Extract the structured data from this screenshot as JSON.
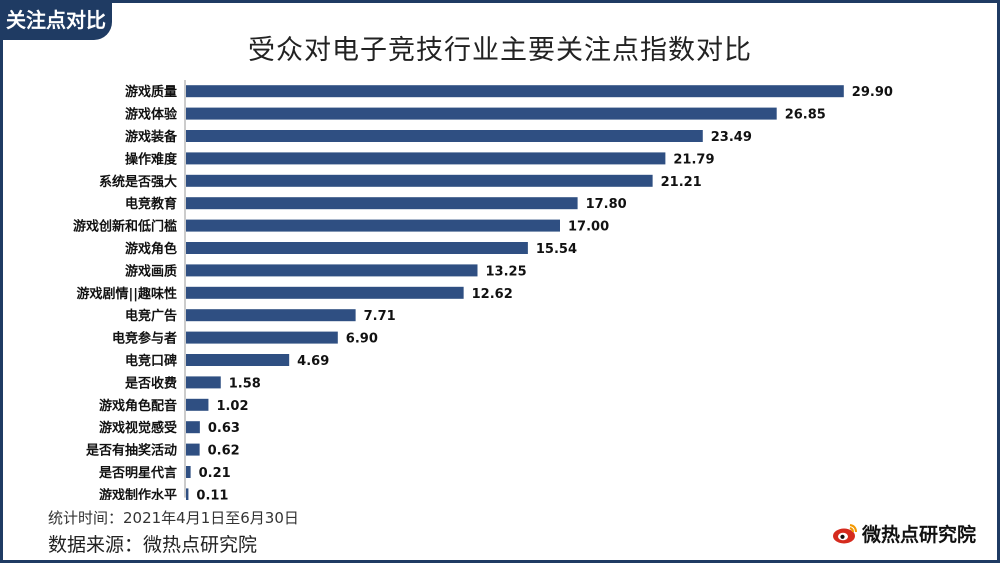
{
  "tag": "关注点对比",
  "title": "受众对电子竞技行业主要关注点指数对比",
  "footnote_period": "统计时间：2021年4月1日至6月30日",
  "footnote_source": "数据来源：微热点研究院",
  "brand": {
    "text": "微热点研究院",
    "logo_icon": "weibo-eye-logo"
  },
  "colors": {
    "bar": "#2f4f82",
    "frame": "#1f3b63",
    "text": "#111111"
  },
  "chart_data": {
    "type": "bar",
    "orientation": "horizontal",
    "title": "受众对电子竞技行业主要关注点指数对比",
    "categories": [
      "游戏质量",
      "游戏体验",
      "游戏装备",
      "操作难度",
      "系统是否强大",
      "电竞教育",
      "游戏创新和低门槛",
      "游戏角色",
      "游戏画质",
      "游戏剧情||趣味性",
      "电竞广告",
      "电竞参与者",
      "电竞口碑",
      "是否收费",
      "游戏角色配音",
      "游戏视觉感受",
      "是否有抽奖活动",
      "是否明星代言",
      "游戏制作水平"
    ],
    "values": [
      29.9,
      26.85,
      23.49,
      21.79,
      21.21,
      17.8,
      17.0,
      15.54,
      13.25,
      12.62,
      7.71,
      6.9,
      4.69,
      1.58,
      1.02,
      0.63,
      0.62,
      0.21,
      0.11
    ],
    "value_labels": [
      "29.90",
      "26.85",
      "23.49",
      "21.79",
      "21.21",
      "17.80",
      "17.00",
      "15.54",
      "13.25",
      "12.62",
      "7.71",
      "6.90",
      "4.69",
      "1.58",
      "1.02",
      "0.63",
      "0.62",
      "0.21",
      "0.11"
    ],
    "xlim": [
      0,
      30
    ],
    "grid": false,
    "legend": "none"
  }
}
